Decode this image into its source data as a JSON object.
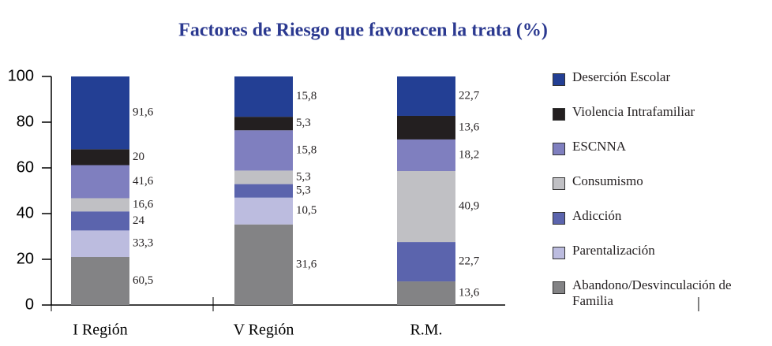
{
  "chart_data": {
    "type": "bar",
    "stacked": "percent",
    "title": "Factores de Riesgo que favorecen la trata (%)",
    "categories": [
      "I Región",
      "V Región",
      "R.M."
    ],
    "ylim": [
      0,
      100
    ],
    "yticks": [
      0,
      20,
      40,
      60,
      80,
      100
    ],
    "series": [
      {
        "name": "Deserción Escolar",
        "color": "#233f94",
        "values": [
          91.6,
          15.8,
          22.7
        ],
        "value_labels": [
          "91,6",
          "15,8",
          "22,7"
        ]
      },
      {
        "name": "Violencia Intrafamiliar",
        "color": "#231f20",
        "values": [
          20,
          5.3,
          13.6
        ],
        "value_labels": [
          "20",
          "5,3",
          "13,6"
        ]
      },
      {
        "name": "ESCNNA",
        "color": "#7f7fbf",
        "values": [
          41.6,
          15.8,
          18.2
        ],
        "value_labels": [
          "41,6",
          "15,8",
          "18,2"
        ]
      },
      {
        "name": "Consumismo",
        "color": "#c0c0c4",
        "values": [
          16.6,
          5.3,
          40.9
        ],
        "value_labels": [
          "16,6",
          "5,3",
          "40,9"
        ]
      },
      {
        "name": "Adicción",
        "color": "#5b64ad",
        "values": [
          24,
          5.3,
          22.7
        ],
        "value_labels": [
          "24",
          "5,3",
          "22,7"
        ]
      },
      {
        "name": "Parentalización",
        "color": "#bcbcdf",
        "values": [
          33.3,
          10.5,
          null
        ],
        "value_labels": [
          "33,3",
          "10,5",
          null
        ]
      },
      {
        "name": "Abandono/Desvinculación de Familia",
        "color": "#838385",
        "values": [
          60.5,
          31.6,
          13.6
        ],
        "value_labels": [
          "60,5",
          "31,6",
          "13,6"
        ]
      }
    ]
  }
}
